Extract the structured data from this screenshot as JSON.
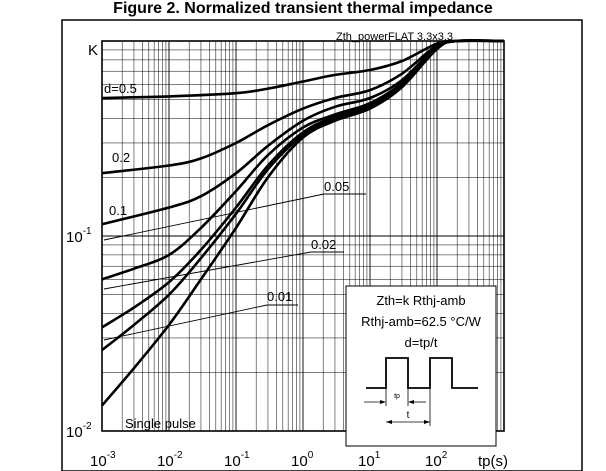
{
  "chart_data": {
    "type": "line",
    "title": "Figure 2. Normalized transient thermal impedance",
    "corner_label": "Zth_powerFLAT 3.3x3.3",
    "ylabel": "K",
    "xlabel": "tp(s)",
    "x_scale": "log",
    "y_scale": "log",
    "xlim": [
      0.001,
      1000
    ],
    "ylim": [
      0.01,
      1
    ],
    "grid": true,
    "x_ticks": [
      {
        "value": 0.001,
        "base": "10",
        "exp": "-3"
      },
      {
        "value": 0.01,
        "base": "10",
        "exp": "-2"
      },
      {
        "value": 0.1,
        "base": "10",
        "exp": "-1"
      },
      {
        "value": 1,
        "base": "10",
        "exp": "0"
      },
      {
        "value": 10,
        "base": "10",
        "exp": "1"
      },
      {
        "value": 100,
        "base": "10",
        "exp": "2"
      }
    ],
    "y_ticks": [
      {
        "value": 0.01,
        "base": "10",
        "exp": "-2"
      },
      {
        "value": 0.1,
        "base": "10",
        "exp": "-1"
      }
    ],
    "series": [
      {
        "name": "d=0.5",
        "points": [
          [
            0.001,
            0.51
          ],
          [
            0.01,
            0.52
          ],
          [
            0.1,
            0.54
          ],
          [
            0.3,
            0.57
          ],
          [
            1,
            0.62
          ],
          [
            3,
            0.67
          ],
          [
            10,
            0.71
          ],
          [
            30,
            0.79
          ],
          [
            100,
            0.97
          ],
          [
            200,
            1.0
          ],
          [
            1000,
            1.0
          ]
        ]
      },
      {
        "name": "0.2",
        "points": [
          [
            0.001,
            0.21
          ],
          [
            0.01,
            0.23
          ],
          [
            0.03,
            0.25
          ],
          [
            0.1,
            0.3
          ],
          [
            0.3,
            0.37
          ],
          [
            1,
            0.45
          ],
          [
            3,
            0.51
          ],
          [
            10,
            0.56
          ],
          [
            30,
            0.68
          ],
          [
            100,
            0.95
          ],
          [
            200,
            1.0
          ],
          [
            1000,
            1.0
          ]
        ]
      },
      {
        "name": "0.1",
        "points": [
          [
            0.001,
            0.115
          ],
          [
            0.01,
            0.14
          ],
          [
            0.03,
            0.16
          ],
          [
            0.1,
            0.21
          ],
          [
            0.3,
            0.29
          ],
          [
            1,
            0.39
          ],
          [
            3,
            0.46
          ],
          [
            10,
            0.51
          ],
          [
            30,
            0.63
          ],
          [
            100,
            0.94
          ],
          [
            200,
            1.0
          ],
          [
            1000,
            1.0
          ]
        ]
      },
      {
        "name": "0.05",
        "points": [
          [
            0.001,
            0.06
          ],
          [
            0.003,
            0.068
          ],
          [
            0.01,
            0.08
          ],
          [
            0.03,
            0.11
          ],
          [
            0.1,
            0.17
          ],
          [
            0.3,
            0.26
          ],
          [
            1,
            0.36
          ],
          [
            3,
            0.42
          ],
          [
            10,
            0.48
          ],
          [
            30,
            0.61
          ],
          [
            100,
            0.93
          ],
          [
            200,
            1.0
          ],
          [
            1000,
            1.0
          ]
        ]
      },
      {
        "name": "0.02",
        "points": [
          [
            0.001,
            0.034
          ],
          [
            0.003,
            0.043
          ],
          [
            0.01,
            0.058
          ],
          [
            0.03,
            0.085
          ],
          [
            0.1,
            0.14
          ],
          [
            0.3,
            0.23
          ],
          [
            1,
            0.34
          ],
          [
            3,
            0.41
          ],
          [
            10,
            0.47
          ],
          [
            30,
            0.6
          ],
          [
            100,
            0.92
          ],
          [
            200,
            1.0
          ],
          [
            1000,
            1.0
          ]
        ]
      },
      {
        "name": "0.01",
        "points": [
          [
            0.001,
            0.026
          ],
          [
            0.003,
            0.035
          ],
          [
            0.01,
            0.05
          ],
          [
            0.03,
            0.077
          ],
          [
            0.1,
            0.13
          ],
          [
            0.3,
            0.22
          ],
          [
            1,
            0.33
          ],
          [
            3,
            0.4
          ],
          [
            10,
            0.46
          ],
          [
            30,
            0.59
          ],
          [
            100,
            0.92
          ],
          [
            200,
            1.0
          ],
          [
            1000,
            1.0
          ]
        ]
      },
      {
        "name": "Single pulse",
        "points": [
          [
            0.001,
            0.0135
          ],
          [
            0.003,
            0.021
          ],
          [
            0.01,
            0.035
          ],
          [
            0.03,
            0.06
          ],
          [
            0.1,
            0.11
          ],
          [
            0.3,
            0.2
          ],
          [
            1,
            0.32
          ],
          [
            3,
            0.39
          ],
          [
            10,
            0.45
          ],
          [
            30,
            0.58
          ],
          [
            100,
            0.91
          ],
          [
            200,
            1.0
          ],
          [
            1000,
            1.0
          ]
        ]
      }
    ],
    "curve_labels": [
      {
        "text": "d=0.5",
        "leader": false
      },
      {
        "text": "0.2",
        "leader": false
      },
      {
        "text": "0.1",
        "leader": false
      },
      {
        "text": "0.05",
        "leader": true
      },
      {
        "text": "0.02",
        "leader": true
      },
      {
        "text": "0.01",
        "leader": true
      },
      {
        "text": "Single pulse",
        "leader": false
      }
    ],
    "annotation": {
      "lines": [
        "Zth=k Rthj-amb",
        "Rthj-amb=62.5 °C/W",
        "d=tp/t"
      ],
      "pulse_labels": {
        "tp": "tp",
        "t": "t"
      }
    }
  }
}
